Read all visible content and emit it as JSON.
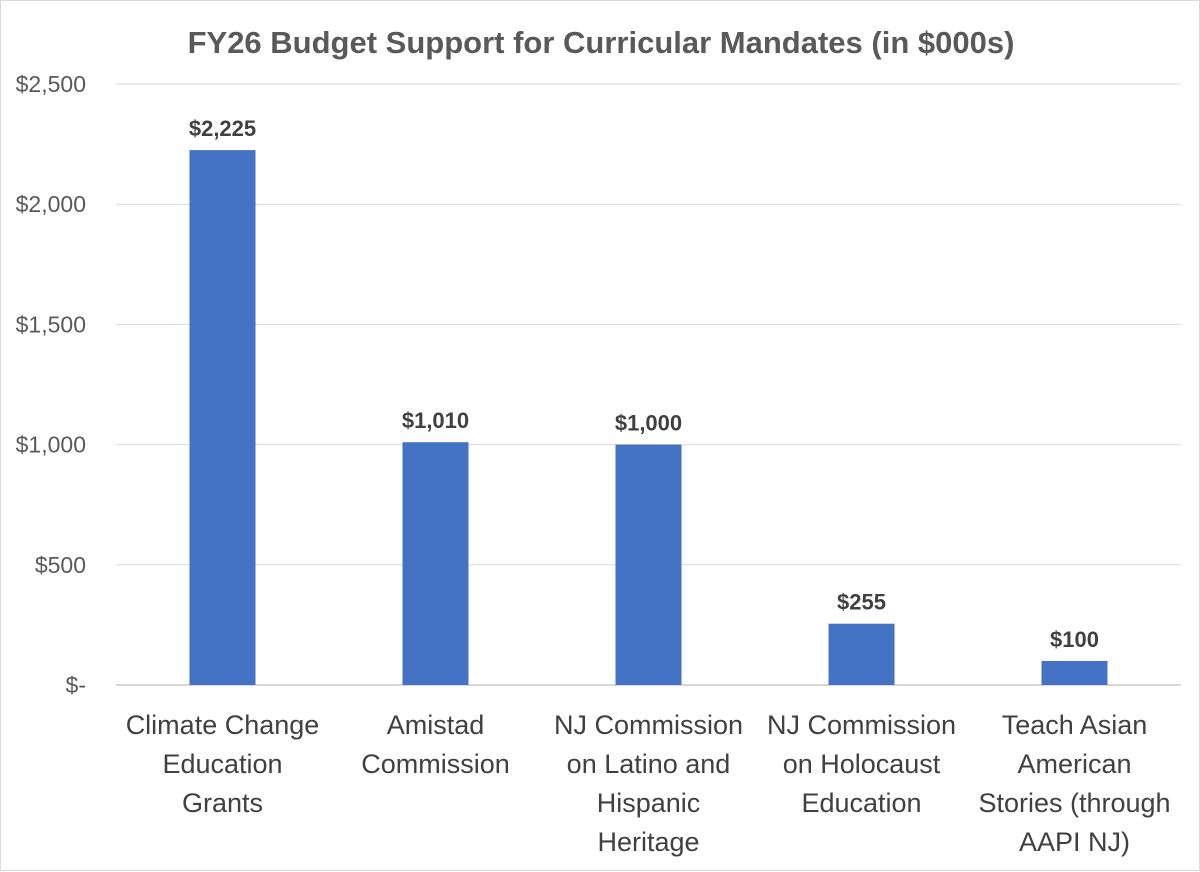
{
  "chart_data": {
    "type": "bar",
    "title": "FY26 Budget Support for Curricular Mandates (in $000s)",
    "categories": [
      [
        "Climate Change",
        "Education",
        "Grants"
      ],
      [
        "Amistad",
        "Commission"
      ],
      [
        "NJ Commission",
        "on Latino and",
        "Hispanic",
        "Heritage"
      ],
      [
        "NJ Commission",
        "on Holocaust",
        "Education"
      ],
      [
        "Teach Asian",
        "American",
        "Stories (through",
        "AAPI NJ)"
      ]
    ],
    "values": [
      2225,
      1010,
      1000,
      255,
      100
    ],
    "data_labels": [
      "$2,225",
      "$1,010",
      "$1,000",
      "$255",
      "$100"
    ],
    "ylim": [
      0,
      2500
    ],
    "yticks": [
      0,
      500,
      1000,
      1500,
      2000,
      2500
    ],
    "ytick_labels": [
      "$-",
      "$500",
      "$1,000",
      "$1,500",
      "$2,000",
      "$2,500"
    ],
    "xlabel": "",
    "ylabel": "",
    "grid": true,
    "legend": "none",
    "colors": {
      "bar": "#4472c4",
      "gridline": "#d9d9d9",
      "text": "#595959"
    }
  }
}
